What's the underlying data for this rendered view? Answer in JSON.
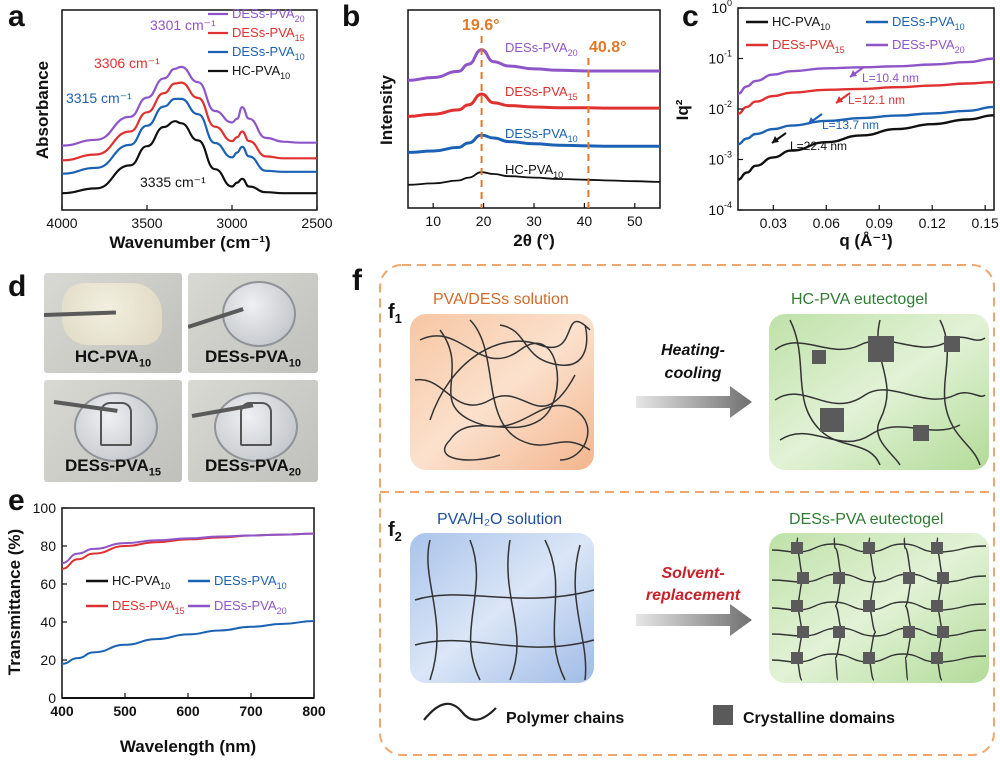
{
  "panels": {
    "a": {
      "label": "a",
      "xlabel": "Wavenumber (cm⁻¹)",
      "ylabel": "Absorbance",
      "xticks": [
        "4000",
        "3500",
        "3000",
        "2500"
      ],
      "series": [
        {
          "name": "DESs-PVA",
          "sub": "20",
          "color": "#8e55c8",
          "peak_label": "3301 cm⁻¹"
        },
        {
          "name": "DESs-PVA",
          "sub": "15",
          "color": "#e03030",
          "peak_label": "3306 cm⁻¹"
        },
        {
          "name": "DESs-PVA",
          "sub": "10",
          "color": "#1c62b4",
          "peak_label": "3315 cm⁻¹"
        },
        {
          "name": "HC-PVA",
          "sub": "10",
          "color": "#111111",
          "peak_label": "3335 cm⁻¹"
        }
      ]
    },
    "b": {
      "label": "b",
      "xlabel": "2θ (°)",
      "ylabel": "Intensity",
      "xticks": [
        "10",
        "20",
        "30",
        "40",
        "50"
      ],
      "peak1": "19.6°",
      "peak2": "40.8°",
      "series": [
        {
          "name": "DESs-PVA",
          "sub": "20",
          "color": "#8e55c8"
        },
        {
          "name": "DESs-PVA",
          "sub": "15",
          "color": "#e03030"
        },
        {
          "name": "DESs-PVA",
          "sub": "10",
          "color": "#1c62b4"
        },
        {
          "name": "HC-PVA",
          "sub": "10",
          "color": "#111111"
        }
      ]
    },
    "c": {
      "label": "c",
      "xlabel": "q (Å⁻¹)",
      "ylabel": "Iq²",
      "xticks": [
        "0.03",
        "0.06",
        "0.09",
        "0.12",
        "0.15"
      ],
      "yticks": [
        {
          "base": "10",
          "exp": "0"
        },
        {
          "base": "10",
          "exp": "-1"
        },
        {
          "base": "10",
          "exp": "-2"
        },
        {
          "base": "10",
          "exp": "-3"
        },
        {
          "base": "10",
          "exp": "-4"
        }
      ],
      "series": [
        {
          "name": "HC-PVA",
          "sub": "10",
          "color": "#111111",
          "L": "L=22.4 nm"
        },
        {
          "name": "DESs-PVA",
          "sub": "10",
          "color": "#1c62b4",
          "L": "L=13.7 nm"
        },
        {
          "name": "DESs-PVA",
          "sub": "15",
          "color": "#e03030",
          "L": "L=12.1 nm"
        },
        {
          "name": "DESs-PVA",
          "sub": "20",
          "color": "#8e55c8",
          "L": "L=10.4 nm"
        }
      ]
    },
    "d": {
      "label": "d",
      "photos": [
        {
          "name": "HC-PVA",
          "sub": "10"
        },
        {
          "name": "DESs-PVA",
          "sub": "10"
        },
        {
          "name": "DESs-PVA",
          "sub": "15"
        },
        {
          "name": "DESs-PVA",
          "sub": "20"
        }
      ]
    },
    "e": {
      "label": "e",
      "xlabel": "Wavelength (nm)",
      "ylabel": "Transmittance (%)",
      "xticks": [
        "400",
        "500",
        "600",
        "700",
        "800"
      ],
      "yticks": [
        "0",
        "20",
        "40",
        "60",
        "80",
        "100"
      ],
      "legend": [
        {
          "name": "HC-PVA",
          "sub": "10",
          "color": "#111111"
        },
        {
          "name": "DESs-PVA",
          "sub": "10",
          "color": "#1c62b4"
        },
        {
          "name": "DESs-PVA",
          "sub": "15",
          "color": "#e03030"
        },
        {
          "name": "DESs-PVA",
          "sub": "20",
          "color": "#8e55c8"
        }
      ]
    },
    "f": {
      "label": "f",
      "f1": {
        "label": "f",
        "sub": "1",
        "left_title": "PVA/DESs solution",
        "right_title": "HC-PVA eutectogel",
        "arrow_line1": "Heating-",
        "arrow_line2": "cooling"
      },
      "f2": {
        "label": "f",
        "sub": "2",
        "left_title": "PVA/H₂O solution",
        "right_title": "DESs-PVA eutectogel",
        "arrow_line1": "Solvent-",
        "arrow_line2": "replacement"
      },
      "legend_chain": "Polymer chains",
      "legend_crystal": "Crystalline domains"
    }
  },
  "chart_data": [
    {
      "type": "line",
      "title": "",
      "xlabel": "Wavenumber (cm⁻¹)",
      "ylabel": "Absorbance",
      "xlim": [
        4000,
        2500
      ],
      "x": [
        4000,
        3800,
        3600,
        3500,
        3400,
        3335,
        3300,
        3200,
        3100,
        3000,
        2970,
        2940,
        2900,
        2800,
        2700,
        2600,
        2500
      ],
      "series": [
        {
          "name": "DESs-PVA20",
          "values": [
            0.12,
            0.18,
            0.42,
            0.62,
            0.82,
            0.92,
            0.94,
            0.78,
            0.48,
            0.36,
            0.4,
            0.52,
            0.4,
            0.2,
            0.16,
            0.15,
            0.15
          ]
        },
        {
          "name": "DESs-PVA15",
          "values": [
            0.1,
            0.16,
            0.4,
            0.6,
            0.8,
            0.9,
            0.91,
            0.75,
            0.45,
            0.3,
            0.34,
            0.4,
            0.3,
            0.14,
            0.12,
            0.12,
            0.12
          ]
        },
        {
          "name": "DESs-PVA10",
          "values": [
            0.08,
            0.14,
            0.38,
            0.58,
            0.78,
            0.86,
            0.86,
            0.7,
            0.4,
            0.25,
            0.3,
            0.36,
            0.26,
            0.11,
            0.1,
            0.1,
            0.1
          ]
        },
        {
          "name": "HC-PVA10",
          "values": [
            0.05,
            0.1,
            0.34,
            0.54,
            0.74,
            0.8,
            0.78,
            0.6,
            0.3,
            0.12,
            0.16,
            0.2,
            0.12,
            0.06,
            0.05,
            0.05,
            0.05
          ]
        }
      ]
    },
    {
      "type": "line",
      "title": "",
      "xlabel": "2θ (°)",
      "ylabel": "Intensity",
      "xlim": [
        5,
        55
      ],
      "x": [
        5,
        10,
        15,
        17,
        19.6,
        22,
        25,
        30,
        35,
        40.8,
        45,
        50,
        55
      ],
      "series": [
        {
          "name": "DESs-PVA20",
          "values": [
            3.1,
            3.18,
            3.35,
            3.55,
            3.95,
            3.62,
            3.5,
            3.42,
            3.38,
            3.36,
            3.36,
            3.36,
            3.36
          ]
        },
        {
          "name": "DESs-PVA15",
          "values": [
            2.1,
            2.16,
            2.28,
            2.42,
            2.72,
            2.48,
            2.4,
            2.36,
            2.34,
            2.34,
            2.33,
            2.33,
            2.33
          ]
        },
        {
          "name": "DESs-PVA10",
          "values": [
            1.1,
            1.14,
            1.24,
            1.36,
            1.58,
            1.5,
            1.4,
            1.34,
            1.3,
            1.28,
            1.27,
            1.27,
            1.27
          ]
        },
        {
          "name": "HC-PVA10",
          "values": [
            0.2,
            0.24,
            0.32,
            0.4,
            0.55,
            0.5,
            0.44,
            0.4,
            0.36,
            0.34,
            0.32,
            0.3,
            0.28
          ]
        }
      ]
    },
    {
      "type": "line",
      "title": "",
      "xlabel": "q (Å⁻¹)",
      "ylabel": "Iq²",
      "xlim": [
        0.01,
        0.155
      ],
      "ylim": [
        0.0001,
        1
      ],
      "yscale": "log",
      "x": [
        0.01,
        0.015,
        0.02,
        0.03,
        0.04,
        0.06,
        0.08,
        0.1,
        0.12,
        0.14,
        0.155
      ],
      "series": [
        {
          "name": "HC-PVA10",
          "values": [
            0.0004,
            0.00055,
            0.00075,
            0.0011,
            0.0015,
            0.0022,
            0.003,
            0.004,
            0.005,
            0.0062,
            0.0075
          ]
        },
        {
          "name": "DESs-PVA10",
          "values": [
            0.002,
            0.0026,
            0.0032,
            0.004,
            0.0047,
            0.0058,
            0.0066,
            0.0074,
            0.0082,
            0.0092,
            0.011
          ]
        },
        {
          "name": "DESs-PVA15",
          "values": [
            0.008,
            0.011,
            0.014,
            0.018,
            0.021,
            0.024,
            0.025,
            0.027,
            0.029,
            0.032,
            0.034
          ]
        },
        {
          "name": "DESs-PVA20",
          "values": [
            0.02,
            0.028,
            0.036,
            0.048,
            0.056,
            0.064,
            0.067,
            0.07,
            0.076,
            0.085,
            0.1
          ]
        }
      ]
    },
    {
      "type": "line",
      "title": "",
      "xlabel": "Wavelength (nm)",
      "ylabel": "Transmittance (%)",
      "xlim": [
        400,
        800
      ],
      "ylim": [
        0,
        100
      ],
      "x": [
        400,
        425,
        450,
        500,
        550,
        600,
        650,
        700,
        750,
        800
      ],
      "series": [
        {
          "name": "HC-PVA10",
          "values": [
            0,
            0,
            0,
            0,
            0,
            0,
            0,
            0,
            0,
            0
          ]
        },
        {
          "name": "DESs-PVA10",
          "values": [
            18,
            21,
            24,
            28,
            31,
            33.5,
            35.5,
            37.5,
            39,
            40.5
          ]
        },
        {
          "name": "DESs-PVA15",
          "values": [
            68,
            73,
            76,
            80,
            82,
            83.5,
            84.5,
            85.5,
            86,
            86.5
          ]
        },
        {
          "name": "DESs-PVA20",
          "values": [
            71,
            76,
            78.5,
            81.5,
            83,
            84,
            85,
            85.5,
            86,
            86.5
          ]
        }
      ]
    }
  ]
}
